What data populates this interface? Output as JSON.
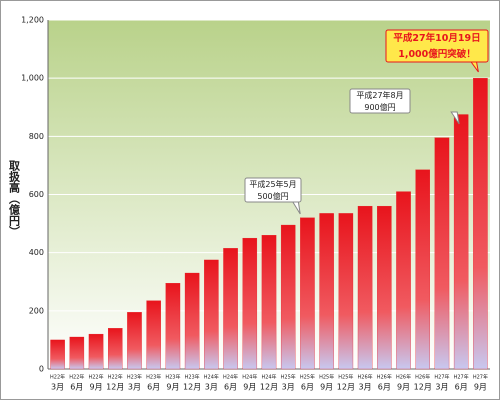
{
  "chart_data": {
    "type": "bar",
    "y_label": "取扱高（億円）",
    "categories": [
      [
        "H22年",
        "3月"
      ],
      [
        "H22年",
        "6月"
      ],
      [
        "H22年",
        "9月"
      ],
      [
        "H22年",
        "12月"
      ],
      [
        "H23年",
        "3月"
      ],
      [
        "H23年",
        "6月"
      ],
      [
        "H23年",
        "9月"
      ],
      [
        "H23年",
        "12月"
      ],
      [
        "H24年",
        "3月"
      ],
      [
        "H24年",
        "6月"
      ],
      [
        "H24年",
        "9月"
      ],
      [
        "H24年",
        "12月"
      ],
      [
        "H25年",
        "3月"
      ],
      [
        "H25年",
        "6月"
      ],
      [
        "H25年",
        "9月"
      ],
      [
        "H25年",
        "12月"
      ],
      [
        "H26年",
        "3月"
      ],
      [
        "H26年",
        "6月"
      ],
      [
        "H26年",
        "9月"
      ],
      [
        "H26年",
        "12月"
      ],
      [
        "H27年",
        "3月"
      ],
      [
        "H27年",
        "6月"
      ],
      [
        "H27年",
        "9月"
      ]
    ],
    "values": [
      100,
      110,
      120,
      140,
      195,
      235,
      295,
      330,
      375,
      415,
      450,
      460,
      495,
      520,
      535,
      535,
      560,
      560,
      610,
      685,
      795,
      875,
      1000
    ],
    "color": "#e8141c",
    "ylim": [
      0,
      1200
    ],
    "yticks": [
      0,
      200,
      400,
      600,
      800,
      {
        "value": 1000,
        "label": "1,000"
      },
      {
        "value": 1200,
        "label": "1,200"
      }
    ],
    "grid": true,
    "annotations": [
      {
        "lines": [
          "平成25年5月",
          "500億円"
        ]
      },
      {
        "lines": [
          "平成27年8月",
          "900億円"
        ]
      },
      {
        "lines": [
          "平成27年10月19日",
          "1,000億円突破！"
        ]
      }
    ]
  }
}
